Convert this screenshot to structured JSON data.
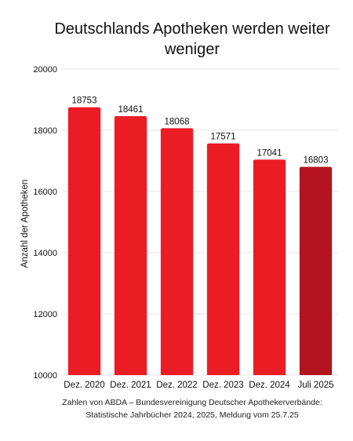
{
  "chart_data": {
    "type": "bar",
    "title": [
      "Deutschlands Apotheken werden weiter",
      "weniger"
    ],
    "ylabel": "Anzahl der Apotheken",
    "xlabel": "",
    "categories": [
      "Dez. 2020",
      "Dez. 2021",
      "Dez. 2022",
      "Dez. 2023",
      "Dez. 2024",
      "Juli 2025"
    ],
    "values": [
      18753,
      18461,
      18068,
      17571,
      17041,
      16803
    ],
    "ylim": [
      10000,
      20000
    ],
    "yticks": [
      "10000",
      "12000",
      "14000",
      "16000",
      "18000",
      "20000"
    ],
    "grid": true,
    "colors": {
      "bar": "#ec1c24",
      "highlight_bar": "#b31420",
      "grid": "#e6e6e6"
    },
    "highlight_index": 5,
    "source_lines": [
      "Zahlen von ABDA – Bundesvereinigung Deutscher Apothekerverbände:",
      "Statistische Jahrbücher 2024, 2025, Meldung vom 25.7.25"
    ]
  }
}
